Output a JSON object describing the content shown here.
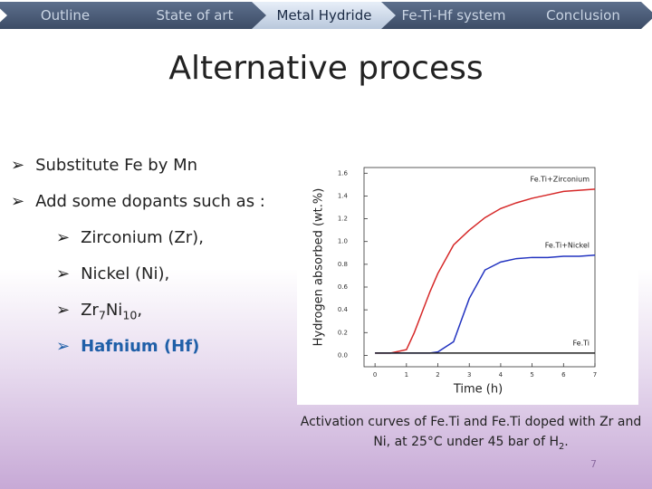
{
  "nav": {
    "items": [
      "Outline",
      "State of art",
      "Metal Hydride",
      "Fe-Ti-Hf system",
      "Conclusion"
    ],
    "active": 2
  },
  "title": "Alternative process",
  "bullets": [
    "Substitute Fe by Mn",
    "Add some dopants such as :"
  ],
  "sub_bullets": [
    {
      "segments": [
        {
          "text": "Zirconium (Zr),"
        }
      ]
    },
    {
      "segments": [
        {
          "text": "Nickel (Ni),"
        }
      ]
    },
    {
      "segments": [
        {
          "text": "Zr"
        },
        {
          "text": "7",
          "sub": true
        },
        {
          "text": "Ni"
        },
        {
          "text": "10",
          "sub": true
        },
        {
          "text": ","
        }
      ]
    },
    {
      "segments": [
        {
          "text": "Hafnium (Hf)"
        }
      ],
      "color": "#1f5fa8",
      "bold": true
    }
  ],
  "caption": {
    "segments": [
      {
        "text": "Activation curves of Fe.Ti and Fe.Ti doped with Zr  and Ni, at 25°C under 45 bar of H"
      },
      {
        "text": "2",
        "sub": true
      },
      {
        "text": "."
      }
    ]
  },
  "page_number": "7",
  "chart_data": {
    "type": "line",
    "xlabel": "Time (h)",
    "ylabel": "Hydrogen absorbed (wt.%)",
    "x": [
      0,
      0.5,
      1,
      1.25,
      1.5,
      1.75,
      2,
      2.5,
      3,
      3.5,
      4,
      4.5,
      5,
      5.5,
      6,
      6.5,
      7
    ],
    "series": [
      {
        "name": "Fe.Ti+Zirconium",
        "color": "#d62828",
        "values": [
          0.02,
          0.02,
          0.05,
          0.2,
          0.38,
          0.56,
          0.72,
          0.97,
          1.1,
          1.21,
          1.29,
          1.34,
          1.38,
          1.41,
          1.44,
          1.45,
          1.46
        ]
      },
      {
        "name": "Fe.Ti+Nickel",
        "color": "#2233c0",
        "values": [
          0.02,
          0.02,
          0.02,
          0.02,
          0.02,
          0.02,
          0.03,
          0.12,
          0.5,
          0.75,
          0.82,
          0.85,
          0.86,
          0.86,
          0.87,
          0.87,
          0.88
        ]
      },
      {
        "name": "Fe.Ti",
        "color": "#222222",
        "values": [
          0.02,
          0.02,
          0.02,
          0.02,
          0.02,
          0.02,
          0.02,
          0.02,
          0.02,
          0.02,
          0.02,
          0.02,
          0.02,
          0.02,
          0.02,
          0.02,
          0.02
        ]
      }
    ],
    "xlim": [
      -0.35,
      7
    ],
    "ylim": [
      -0.1,
      1.65
    ],
    "xticks": [
      0,
      1,
      2,
      3,
      4,
      5,
      6,
      7
    ],
    "yticks": [
      {
        "value": 0,
        "label": "0.0"
      },
      0.2,
      0.4,
      0.6,
      0.8,
      {
        "value": 1,
        "label": "1.0"
      },
      1.2,
      1.4,
      1.6
    ]
  }
}
